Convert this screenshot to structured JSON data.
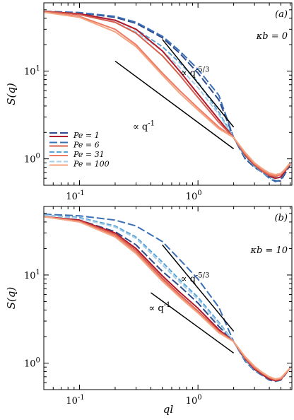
{
  "figure": {
    "xlabel": "ql"
  },
  "chart_data": [
    {
      "type": "line",
      "panel_label": "(a)",
      "kappa_label": "κb = 0",
      "xscale": "log",
      "yscale": "log",
      "xlim": [
        0.05,
        6.2
      ],
      "ylim": [
        0.5,
        60
      ],
      "ylabel": "S(q)",
      "xlabel": "",
      "xticks": [
        "10^-1",
        "10^0"
      ],
      "yticks": [
        "10^0",
        "10^1"
      ],
      "legend_position": "lower-left",
      "series": [
        {
          "name": "Pe = 1",
          "color": "#2c4a8c",
          "dash": "long",
          "x": [
            0.05,
            0.1,
            0.2,
            0.3,
            0.5,
            0.7,
            1.0,
            1.5,
            2.0,
            2.5,
            3.0,
            3.5,
            4.0,
            4.5,
            5.0,
            5.5,
            6.0
          ],
          "y": [
            48,
            46,
            41,
            35,
            24,
            16,
            9.5,
            4.7,
            1.75,
            1.0,
            0.8,
            0.7,
            0.62,
            0.56,
            0.56,
            0.7,
            0.85
          ]
        },
        {
          "name": "Pe = 6",
          "color": "#3b6fb6",
          "dash": "long",
          "x": [
            0.05,
            0.1,
            0.2,
            0.3,
            0.5,
            0.7,
            1.0,
            1.5,
            2.0,
            2.5,
            3.0,
            3.5,
            4.0,
            4.5,
            5.0,
            5.5,
            6.0
          ],
          "y": [
            48,
            46.5,
            42,
            36,
            25,
            17,
            10.5,
            5.3,
            1.75,
            1.05,
            0.82,
            0.7,
            0.6,
            0.55,
            0.58,
            0.72,
            0.9
          ]
        },
        {
          "name": "Pe = 31",
          "color": "#5aa2d6",
          "dash": "mid",
          "x": [
            0.05,
            0.1,
            0.2,
            0.3,
            0.5,
            0.7,
            1.0,
            1.5,
            2.0,
            2.5,
            3.0,
            3.5,
            4.0,
            4.5,
            5.0,
            5.5,
            6.0
          ],
          "y": [
            48,
            45,
            38,
            30,
            19,
            12.5,
            7.5,
            3.4,
            1.75,
            1.05,
            0.82,
            0.7,
            0.62,
            0.6,
            0.62,
            0.75,
            0.9
          ]
        },
        {
          "name": "Pe = 100",
          "color": "#a6cfe8",
          "dash": "mid",
          "x": [
            0.05,
            0.1,
            0.2,
            0.3,
            0.5,
            0.7,
            1.0,
            1.5,
            2.0,
            2.5,
            3.0,
            3.5,
            4.0,
            4.5,
            5.0,
            5.5,
            6.0
          ],
          "y": [
            48,
            44,
            36,
            28,
            17,
            11,
            6.5,
            3.2,
            1.75,
            1.08,
            0.84,
            0.72,
            0.64,
            0.62,
            0.64,
            0.76,
            0.9
          ]
        },
        {
          "name": "",
          "color": "#b2182b",
          "dash": "solid",
          "x": [
            0.05,
            0.1,
            0.2,
            0.3,
            0.5,
            0.7,
            1.0,
            1.5,
            2.0,
            2.5,
            3.0,
            3.5,
            4.0,
            4.5,
            5.0,
            5.5,
            6.0
          ],
          "y": [
            48,
            45,
            38,
            30,
            17,
            10,
            5.5,
            2.8,
            1.75,
            1.1,
            0.85,
            0.72,
            0.64,
            0.6,
            0.62,
            0.74,
            0.88
          ]
        },
        {
          "name": "",
          "color": "#d6604d",
          "dash": "solid",
          "x": [
            0.05,
            0.1,
            0.2,
            0.3,
            0.5,
            0.7,
            1.0,
            1.5,
            2.0,
            2.5,
            3.0,
            3.5,
            4.0,
            4.5,
            5.0,
            5.5,
            6.0
          ],
          "y": [
            48,
            44,
            36,
            27,
            15,
            9,
            5.0,
            2.6,
            1.75,
            1.12,
            0.86,
            0.73,
            0.65,
            0.63,
            0.66,
            0.76,
            0.88
          ]
        },
        {
          "name": "",
          "color": "#ee7a63",
          "dash": "solid",
          "x": [
            0.05,
            0.1,
            0.2,
            0.3,
            0.5,
            0.7,
            1.0,
            1.5,
            2.0,
            2.5,
            3.0,
            3.5,
            4.0,
            4.5,
            5.0,
            5.5,
            6.0
          ],
          "y": [
            47,
            42,
            30,
            20,
            9.5,
            6.0,
            3.8,
            2.3,
            1.75,
            1.15,
            0.88,
            0.75,
            0.67,
            0.64,
            0.66,
            0.76,
            0.88
          ]
        },
        {
          "name": "",
          "color": "#f4a582",
          "dash": "solid",
          "x": [
            0.05,
            0.1,
            0.2,
            0.3,
            0.5,
            0.7,
            1.0,
            1.5,
            2.0,
            2.5,
            3.0,
            3.5,
            4.0,
            4.5,
            5.0,
            5.5,
            6.0
          ],
          "y": [
            47,
            41,
            28,
            19,
            9,
            5.6,
            3.6,
            2.2,
            1.75,
            1.18,
            0.9,
            0.77,
            0.69,
            0.66,
            0.68,
            0.78,
            0.9
          ]
        }
      ],
      "guides": [
        {
          "label": "∝ q^-5/3",
          "x": [
            0.5,
            2.0
          ],
          "y": [
            23,
            2.3
          ]
        },
        {
          "label": "∝ q^-1",
          "x": [
            0.2,
            2.0
          ],
          "y": [
            13,
            1.3
          ]
        }
      ]
    },
    {
      "type": "line",
      "panel_label": "(b)",
      "kappa_label": "κb = 10",
      "xscale": "log",
      "yscale": "log",
      "xlim": [
        0.05,
        6.2
      ],
      "ylim": [
        0.5,
        60
      ],
      "ylabel": "S(q)",
      "xlabel": "ql",
      "xticks": [
        "10^-1",
        "10^0"
      ],
      "yticks": [
        "10^0",
        "10^1"
      ],
      "series": [
        {
          "name": "",
          "color": "#2c4a8c",
          "dash": "long",
          "x": [
            0.05,
            0.1,
            0.2,
            0.3,
            0.5,
            0.7,
            1.0,
            1.5,
            2.0,
            2.5,
            3.0,
            3.5,
            4.0,
            4.5,
            5.0,
            5.5,
            6.0
          ],
          "y": [
            46,
            42,
            31,
            22,
            11,
            7.5,
            4.8,
            2.6,
            1.75,
            1.08,
            0.85,
            0.74,
            0.67,
            0.64,
            0.66,
            0.76,
            0.88
          ]
        },
        {
          "name": "",
          "color": "#3b6fb6",
          "dash": "long",
          "x": [
            0.05,
            0.1,
            0.2,
            0.3,
            0.5,
            0.7,
            1.0,
            1.5,
            2.0,
            2.5,
            3.0,
            3.5,
            4.0,
            4.5,
            5.0,
            5.5,
            6.0
          ],
          "y": [
            49,
            47,
            42,
            36,
            24,
            15,
            9.0,
            4.3,
            1.75,
            1.05,
            0.82,
            0.72,
            0.64,
            0.62,
            0.64,
            0.75,
            0.88
          ]
        },
        {
          "name": "",
          "color": "#5aa2d6",
          "dash": "mid",
          "x": [
            0.05,
            0.1,
            0.2,
            0.3,
            0.5,
            0.7,
            1.0,
            1.5,
            2.0,
            2.5,
            3.0,
            3.5,
            4.0,
            4.5,
            5.0,
            5.5,
            6.0
          ],
          "y": [
            48,
            45,
            36,
            27,
            14,
            8.8,
            5.6,
            2.9,
            1.75,
            1.08,
            0.84,
            0.73,
            0.66,
            0.63,
            0.65,
            0.76,
            0.88
          ]
        },
        {
          "name": "",
          "color": "#a6cfe8",
          "dash": "mid",
          "x": [
            0.05,
            0.1,
            0.2,
            0.3,
            0.5,
            0.7,
            1.0,
            1.5,
            2.0,
            2.5,
            3.0,
            3.5,
            4.0,
            4.5,
            5.0,
            5.5,
            6.0
          ],
          "y": [
            48,
            44,
            35,
            26,
            13,
            8.3,
            5.3,
            2.8,
            1.75,
            1.1,
            0.86,
            0.75,
            0.68,
            0.65,
            0.66,
            0.77,
            0.88
          ]
        },
        {
          "name": "",
          "color": "#b2182b",
          "dash": "solid",
          "x": [
            0.05,
            0.1,
            0.2,
            0.3,
            0.5,
            0.7,
            1.0,
            1.5,
            2.0,
            2.5,
            3.0,
            3.5,
            4.0,
            4.5,
            5.0,
            5.5,
            6.0
          ],
          "y": [
            46,
            42,
            30,
            20,
            9.8,
            6.4,
            4.2,
            2.4,
            1.75,
            1.12,
            0.86,
            0.74,
            0.66,
            0.63,
            0.65,
            0.76,
            0.88
          ]
        },
        {
          "name": "",
          "color": "#d6604d",
          "dash": "solid",
          "x": [
            0.05,
            0.1,
            0.2,
            0.3,
            0.5,
            0.7,
            1.0,
            1.5,
            2.0,
            2.5,
            3.0,
            3.5,
            4.0,
            4.5,
            5.0,
            5.5,
            6.0
          ],
          "y": [
            46,
            41,
            29,
            19,
            9.2,
            6.0,
            3.9,
            2.3,
            1.75,
            1.14,
            0.88,
            0.76,
            0.68,
            0.64,
            0.66,
            0.76,
            0.88
          ]
        },
        {
          "name": "",
          "color": "#ee7a63",
          "dash": "solid",
          "x": [
            0.05,
            0.1,
            0.2,
            0.3,
            0.5,
            0.7,
            1.0,
            1.5,
            2.0,
            2.5,
            3.0,
            3.5,
            4.0,
            4.5,
            5.0,
            5.5,
            6.0
          ],
          "y": [
            46,
            40,
            28,
            18,
            8.8,
            5.8,
            3.8,
            2.25,
            1.75,
            1.16,
            0.9,
            0.77,
            0.69,
            0.65,
            0.67,
            0.77,
            0.88
          ]
        },
        {
          "name": "",
          "color": "#f4a582",
          "dash": "solid",
          "x": [
            0.05,
            0.1,
            0.2,
            0.3,
            0.5,
            0.7,
            1.0,
            1.5,
            2.0,
            2.5,
            3.0,
            3.5,
            4.0,
            4.5,
            5.0,
            5.5,
            6.0
          ],
          "y": [
            46,
            40,
            27,
            17.5,
            8.5,
            5.6,
            3.7,
            2.2,
            1.75,
            1.18,
            0.92,
            0.78,
            0.7,
            0.66,
            0.68,
            0.78,
            0.88
          ]
        }
      ],
      "guides": [
        {
          "label": "∝ q^-5/3",
          "x": [
            0.5,
            2.0
          ],
          "y": [
            22,
            2.3
          ]
        },
        {
          "label": "∝ q^-1",
          "x": [
            0.4,
            2.0
          ],
          "y": [
            6.3,
            1.3
          ]
        }
      ]
    }
  ]
}
